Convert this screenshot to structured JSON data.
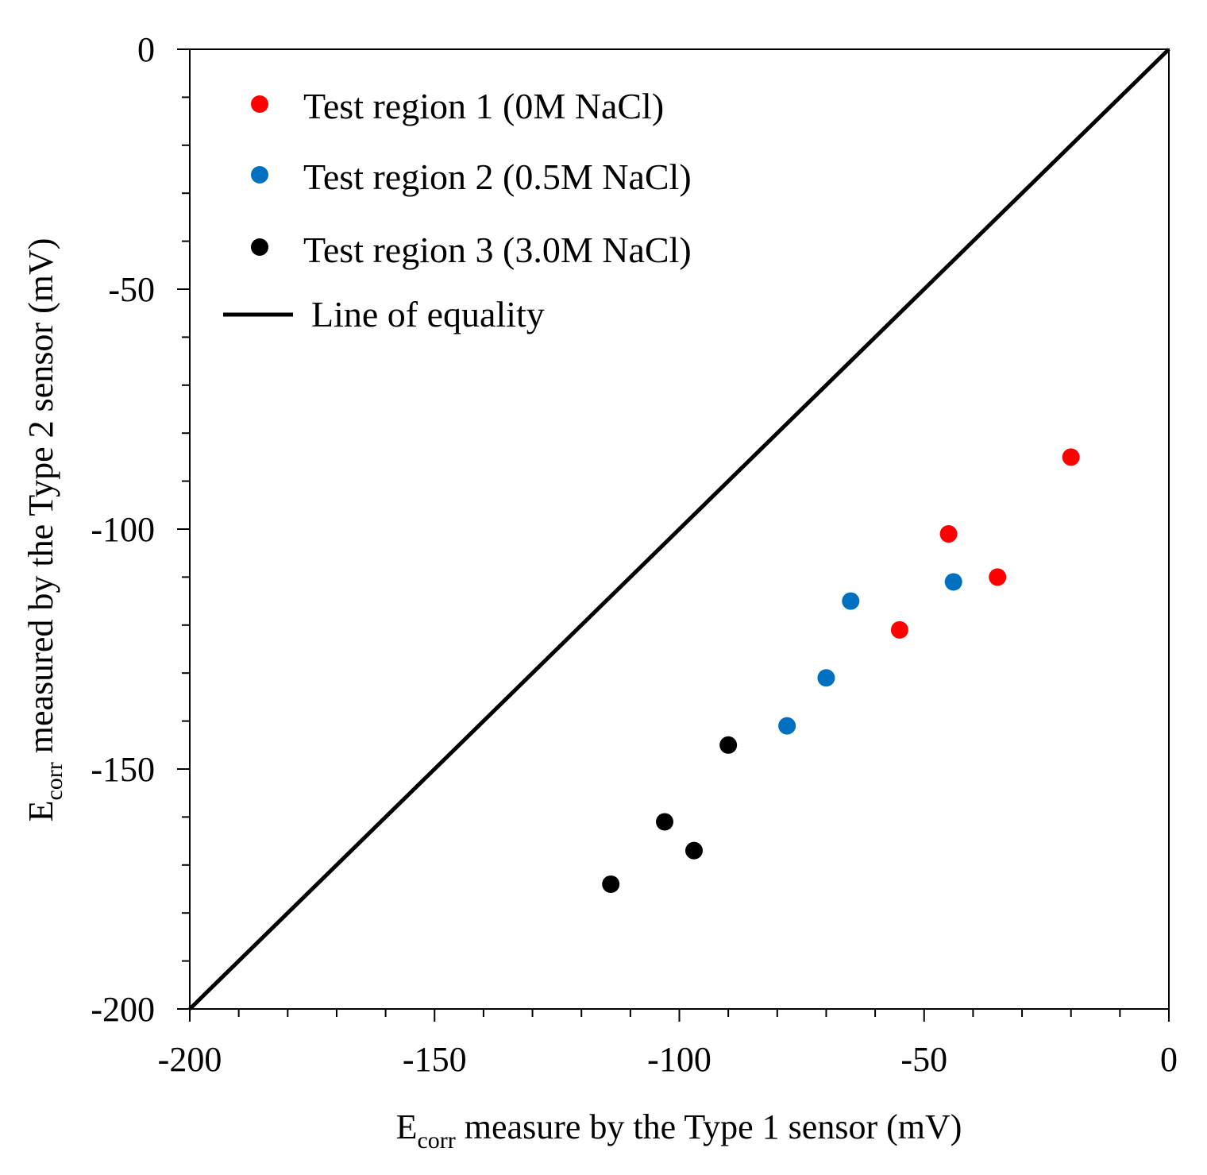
{
  "chart_data": {
    "type": "scatter",
    "xlabel": {
      "main": "E",
      "sub": "corr",
      "rest": " measure by the Type 1 sensor (mV)"
    },
    "ylabel": {
      "main": "E",
      "sub": "corr",
      "rest": " measured by the Type 2 sensor (mV)"
    },
    "xlim": [
      -200,
      0
    ],
    "ylim": [
      -200,
      0
    ],
    "xticks": [
      -200,
      -150,
      -100,
      -50,
      0
    ],
    "yticks": [
      -200,
      -150,
      -100,
      -50,
      0
    ],
    "x_minor_step": 10,
    "y_minor_step": 10,
    "grid": false,
    "legend_position": "top-left",
    "series": [
      {
        "name": "Test region 1 (0M NaCl)",
        "color": "#ff0000",
        "points": [
          [
            -20,
            -85
          ],
          [
            -45,
            -101
          ],
          [
            -35,
            -110
          ],
          [
            -55,
            -121
          ]
        ]
      },
      {
        "name": "Test region 2 (0.5M NaCl)",
        "color": "#0070c0",
        "points": [
          [
            -44,
            -111
          ],
          [
            -65,
            -115
          ],
          [
            -70,
            -131
          ],
          [
            -78,
            -141
          ]
        ]
      },
      {
        "name": "Test region 3 (3.0M NaCl)",
        "color": "#000000",
        "points": [
          [
            -90,
            -145
          ],
          [
            -103,
            -161
          ],
          [
            -97,
            -167
          ],
          [
            -114,
            -174
          ]
        ]
      }
    ],
    "reference_line": {
      "name": "Line of equality",
      "color": "#000000",
      "from": [
        -200,
        -200
      ],
      "to": [
        0,
        0
      ]
    }
  }
}
